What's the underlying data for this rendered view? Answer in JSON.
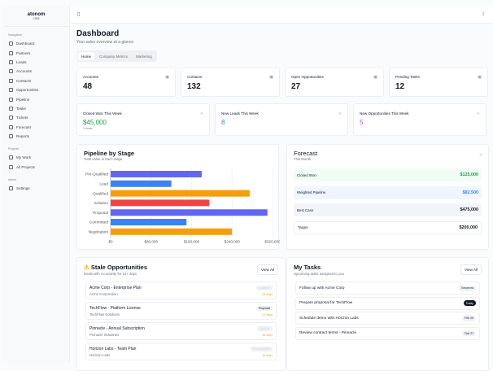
{
  "sidebar": {
    "logo": "atonom",
    "logo_sub": "CRM",
    "groups": [
      {
        "label": "Navigation",
        "items": [
          "Dashboard",
          "Partners",
          "Leads",
          "Accounts",
          "Contacts",
          "Opportunities",
          "Pipeline",
          "Tasks",
          "Tickets",
          "Forecast",
          "Reports"
        ]
      },
      {
        "label": "Projects",
        "items": [
          "My Work",
          "All Projects"
        ]
      },
      {
        "label": "Admin",
        "items": [
          "Settings"
        ]
      }
    ]
  },
  "header": {
    "title": "Dashboard",
    "subtitle": "Your sales overview at a glance",
    "tabs": [
      "Home",
      "Company Metrics",
      "Marketing"
    ],
    "active_tab": "Home"
  },
  "stats": [
    {
      "label": "Accounts",
      "value": "48",
      "icon": "building-icon"
    },
    {
      "label": "Contacts",
      "value": "132",
      "icon": "users-icon"
    },
    {
      "label": "Open Opportunities",
      "value": "27",
      "icon": "target-icon"
    },
    {
      "label": "Pending Tasks",
      "value": "12",
      "icon": "clipboard-icon"
    }
  ],
  "weekly": [
    {
      "label": "Closed Won This Week",
      "value": "$45,000",
      "note": "3 deals",
      "color": "#16a34a",
      "icon": "trophy-icon"
    },
    {
      "label": "New Leads This Week",
      "value": "8",
      "color": "#3b82f6",
      "icon": "user-plus-icon"
    },
    {
      "label": "New Opportunities This Week",
      "value": "5",
      "color": "#a855f7",
      "icon": "sparkle-icon"
    }
  ],
  "pipeline": {
    "title": "Pipeline by Stage",
    "subtitle": "Total value in each stage"
  },
  "chart_data": {
    "type": "bar",
    "orientation": "horizontal",
    "categories": [
      "Pre-Qualified",
      "Lead",
      "Qualified",
      "Solution",
      "Proposal",
      "Committed",
      "Negotiation"
    ],
    "values": [
      180000,
      120000,
      275000,
      195000,
      310000,
      150000,
      240000
    ],
    "colors": [
      "#6366f1",
      "#3b82f6",
      "#f59e0b",
      "#ef4444",
      "#6366f1",
      "#3b82f6",
      "#f59e0b"
    ],
    "xlim": [
      0,
      320000
    ],
    "ticks": [
      "$0",
      "$80,000",
      "$160,000",
      "$240,000",
      "$320,000"
    ],
    "grid": true
  },
  "forecast": {
    "title": "Forecast",
    "subtitle": "This Month",
    "rows": [
      {
        "label": "Closed Won",
        "value": "$125,000",
        "bg": "#f0fdf4",
        "color": "#16a34a"
      },
      {
        "label": "Weighted Pipeline",
        "value": "$82,500",
        "bg": "#eff6ff",
        "color": "#3b82f6"
      },
      {
        "label": "Best Case",
        "value": "$475,000",
        "bg": "#f1f5f9",
        "color": "#111827"
      },
      {
        "label": "Target",
        "value": "$200,000",
        "bg": "#ffffff",
        "color": "#111827"
      }
    ]
  },
  "stale": {
    "title": "Stale Opportunities",
    "subtitle": "Deals with no activity for 14+ days",
    "view_all": "View All",
    "items": [
      {
        "name": "Acme Corp - Enterprise Plan",
        "company": "Acme Corporation",
        "stage": "Qualified",
        "days": "28 days"
      },
      {
        "name": "TechFlow - Platform License",
        "company": "TechFlow Solutions",
        "stage": "Proposal",
        "days": "21 days"
      },
      {
        "name": "Pinnacle - Annual Subscription",
        "company": "Pinnacle Industries",
        "stage": "Solution",
        "days": "18 days"
      },
      {
        "name": "Horizon Labs - Team Plan",
        "company": "Horizon Labs",
        "stage": "Pre-Qualified",
        "days": "16 days"
      }
    ]
  },
  "tasks": {
    "title": "My Tasks",
    "subtitle": "Upcoming tasks assigned to you",
    "view_all": "View All",
    "items": [
      {
        "name": "Follow up with Acme Corp",
        "due": "Tomorrow"
      },
      {
        "name": "Prepare proposal for TechFlow",
        "due": "Today"
      },
      {
        "name": "Schedule demo with Horizon Labs",
        "due": "Feb 25"
      },
      {
        "name": "Review contract terms - Pinnacle",
        "due": "Feb 27"
      }
    ]
  }
}
